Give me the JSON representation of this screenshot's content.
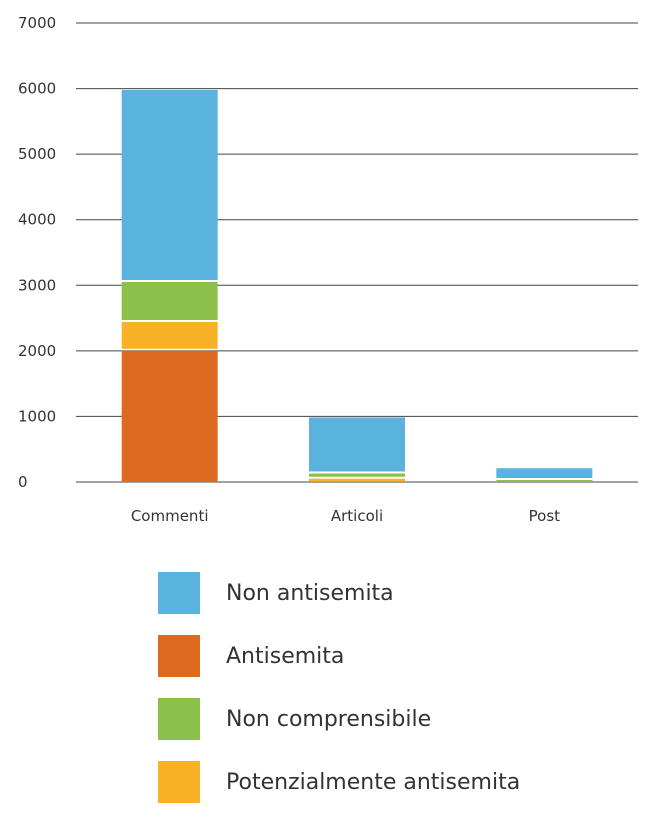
{
  "chart_data": {
    "type": "bar",
    "stacked": true,
    "categories": [
      "Commenti",
      "Articoli",
      "Post"
    ],
    "series": [
      {
        "name": "Antisemita",
        "color": "#dd6a1f",
        "values": [
          2000,
          10,
          3
        ]
      },
      {
        "name": "Potenzialmente antisemita",
        "color": "#f9b126",
        "values": [
          440,
          40,
          5
        ]
      },
      {
        "name": "Non comprensibile",
        "color": "#8bc04a",
        "values": [
          610,
          80,
          22
        ]
      },
      {
        "name": "Non antisemita",
        "color": "#5ab3dc",
        "values": [
          2930,
          855,
          180
        ]
      }
    ],
    "title": "",
    "xlabel": "",
    "ylabel": "",
    "ylim": [
      0,
      7000
    ],
    "yticks": [
      0,
      1000,
      2000,
      3000,
      4000,
      5000,
      6000,
      7000
    ],
    "grid": true,
    "legend_position": "bottom"
  },
  "legend": {
    "items": [
      {
        "label": "Non antisemita",
        "color": "#5ab3dc"
      },
      {
        "label": "Antisemita",
        "color": "#dd6a1f"
      },
      {
        "label": "Non comprensibile",
        "color": "#8bc04a"
      },
      {
        "label": "Potenzialmente antisemita",
        "color": "#f9b126"
      }
    ]
  }
}
